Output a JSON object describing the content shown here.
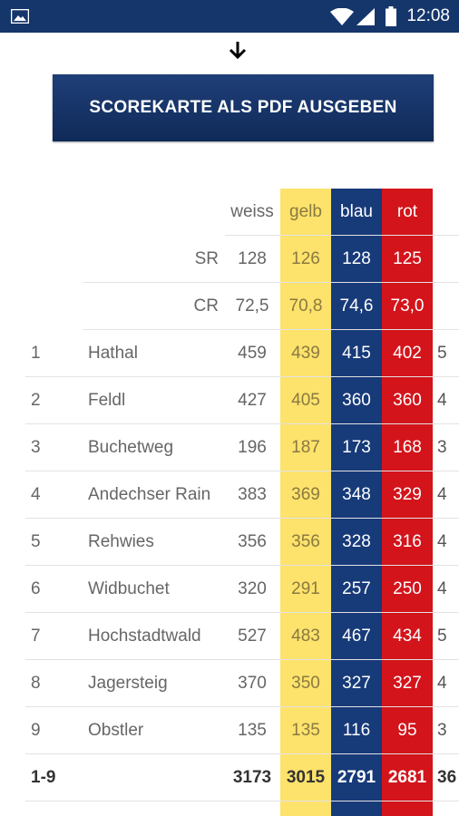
{
  "status": {
    "time": "12:08"
  },
  "button": {
    "label": "SCOREKARTE ALS PDF AUSGEBEN"
  },
  "colors": {
    "yellow": "#fde26c",
    "blue": "#173a79",
    "red": "#d3141b",
    "statusbar": "#15366b"
  },
  "table": {
    "headers": [
      "weiss",
      "gelb",
      "blau",
      "rot"
    ],
    "rating_rows": [
      {
        "label": "SR",
        "values": [
          "128",
          "126",
          "128",
          "125"
        ]
      },
      {
        "label": "CR",
        "values": [
          "72,5",
          "70,8",
          "74,6",
          "73,0"
        ]
      }
    ],
    "holes": [
      {
        "num": "1",
        "name": "Hathal",
        "values": [
          "459",
          "439",
          "415",
          "402"
        ],
        "par": "5"
      },
      {
        "num": "2",
        "name": "Feldl",
        "values": [
          "427",
          "405",
          "360",
          "360"
        ],
        "par": "4"
      },
      {
        "num": "3",
        "name": "Buchetweg",
        "values": [
          "196",
          "187",
          "173",
          "168"
        ],
        "par": "3"
      },
      {
        "num": "4",
        "name": "Andechser Rain",
        "values": [
          "383",
          "369",
          "348",
          "329"
        ],
        "par": "4"
      },
      {
        "num": "5",
        "name": "Rehwies",
        "values": [
          "356",
          "356",
          "328",
          "316"
        ],
        "par": "4"
      },
      {
        "num": "6",
        "name": "Widbuchet",
        "values": [
          "320",
          "291",
          "257",
          "250"
        ],
        "par": "4"
      },
      {
        "num": "7",
        "name": "Hochstadtwald",
        "values": [
          "527",
          "483",
          "467",
          "434"
        ],
        "par": "5"
      },
      {
        "num": "8",
        "name": "Jagersteig",
        "values": [
          "370",
          "350",
          "327",
          "327"
        ],
        "par": "4"
      },
      {
        "num": "9",
        "name": "Obstler",
        "values": [
          "135",
          "135",
          "116",
          "95"
        ],
        "par": "3"
      }
    ],
    "total": {
      "label": "1-9",
      "values": [
        "3173",
        "3015",
        "2791",
        "2681"
      ],
      "par": "36"
    }
  }
}
